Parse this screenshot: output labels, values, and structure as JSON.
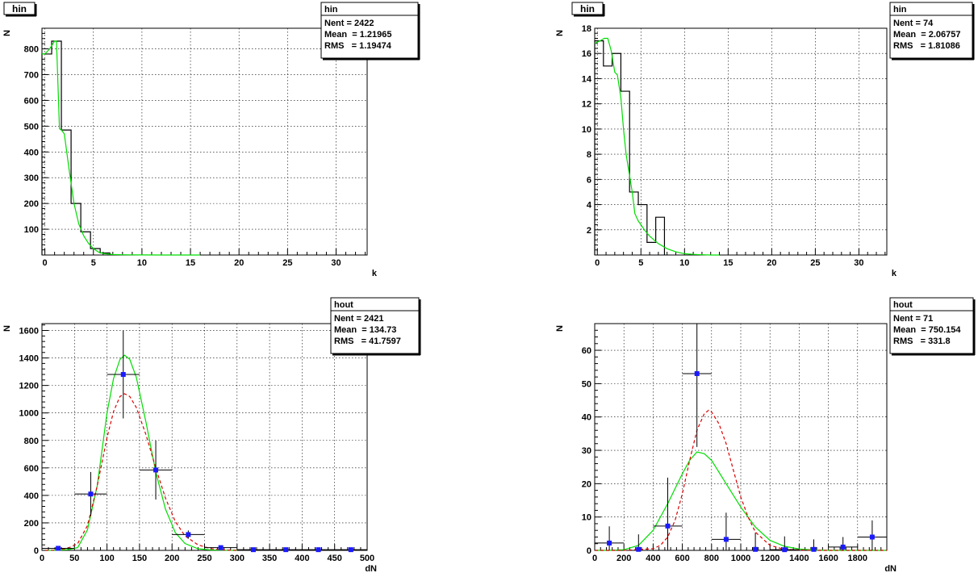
{
  "chart_data": [
    {
      "type": "histogram",
      "title": "hin",
      "xlabel": "k",
      "ylabel": "N",
      "xlim": [
        -0.3,
        33.2
      ],
      "ylim": [
        0,
        880
      ],
      "xticks": [
        0,
        5,
        10,
        15,
        20,
        25,
        30
      ],
      "yticks": [
        100,
        200,
        300,
        400,
        500,
        600,
        700,
        800
      ],
      "stats": {
        "name": "hin",
        "rows": [
          "Nent = 2422",
          "Mean  = 1.21965",
          "RMS   = 1.19474"
        ]
      },
      "hist": {
        "edges": [
          -0.3,
          0.7,
          1.7,
          2.7,
          3.7,
          4.7,
          5.7,
          6.7
        ],
        "values": [
          780,
          830,
          485,
          200,
          90,
          25,
          8
        ],
        "color": "#000000"
      },
      "curves": [
        {
          "name": "fit",
          "color": "#00dd00",
          "dash": "",
          "x": [
            -0.3,
            0,
            0.5,
            1,
            1.2,
            1.5,
            1.7,
            2,
            2.5,
            3,
            3.5,
            4,
            4.5,
            5,
            5.5,
            6,
            7,
            8,
            9,
            10,
            12,
            14,
            16
          ],
          "y": [
            780,
            780,
            800,
            830,
            830,
            490,
            485,
            470,
            330,
            200,
            120,
            75,
            45,
            25,
            12,
            6,
            2,
            1,
            0.5,
            0.2,
            0,
            0,
            0
          ]
        }
      ],
      "points": []
    },
    {
      "type": "histogram",
      "title": "hin",
      "xlabel": "k",
      "ylabel": "N",
      "xlim": [
        -0.3,
        33.2
      ],
      "ylim": [
        0,
        18
      ],
      "xticks": [
        0,
        5,
        10,
        15,
        20,
        25,
        30
      ],
      "yticks": [
        2,
        4,
        6,
        8,
        10,
        12,
        14,
        16,
        18
      ],
      "stats": {
        "name": "hin",
        "rows": [
          "Nent = 74",
          "Mean  = 2.06757",
          "RMS   = 1.81086"
        ]
      },
      "hist": {
        "edges": [
          -0.3,
          0.7,
          1.7,
          2.7,
          3.7,
          4.7,
          5.7,
          6.7,
          7.7
        ],
        "values": [
          17,
          15,
          16,
          13,
          5,
          4,
          1,
          3
        ],
        "color": "#000000"
      },
      "curves": [
        {
          "name": "fit",
          "color": "#00dd00",
          "dash": "",
          "x": [
            -0.3,
            0.3,
            0.8,
            1.2,
            1.6,
            2,
            2.3,
            2.7,
            3,
            3.3,
            3.7,
            4,
            4.3,
            4.7,
            5,
            5.5,
            6,
            6.5,
            7,
            8,
            9,
            10,
            11,
            12,
            13,
            14
          ],
          "y": [
            16.8,
            17,
            17.2,
            17.2,
            16.2,
            14.5,
            14.3,
            12.5,
            10,
            8,
            6.3,
            5,
            3.3,
            2.7,
            2.4,
            1.9,
            1.5,
            1.2,
            0.9,
            0.5,
            0.25,
            0.1,
            0.05,
            0.02,
            0,
            0
          ]
        }
      ],
      "points": []
    },
    {
      "type": "scatter",
      "title": "",
      "xlabel": "dN",
      "ylabel": "N",
      "xlim": [
        0,
        500
      ],
      "ylim": [
        0,
        1650
      ],
      "xticks": [
        0,
        50,
        100,
        150,
        200,
        250,
        300,
        350,
        400,
        450,
        500
      ],
      "yticks": [
        0,
        200,
        400,
        600,
        800,
        1000,
        1200,
        1400,
        1600
      ],
      "stats": {
        "name": "hout",
        "rows": [
          "Nent = 2421",
          "Mean  = 134.73",
          "RMS   = 41.7597"
        ]
      },
      "hist": null,
      "curves": [
        {
          "name": "green",
          "color": "#00dd00",
          "dash": "",
          "x": [
            5,
            20,
            40,
            55,
            70,
            85,
            100,
            110,
            120,
            127,
            135,
            145,
            160,
            175,
            190,
            205,
            220,
            240,
            260,
            280,
            300
          ],
          "y": [
            0,
            1,
            5,
            20,
            150,
            470,
            1000,
            1250,
            1390,
            1420,
            1390,
            1260,
            930,
            570,
            300,
            130,
            50,
            12,
            3,
            1,
            0
          ]
        },
        {
          "name": "red",
          "color": "#dd0000",
          "dash": "4,3",
          "x": [
            5,
            20,
            40,
            55,
            70,
            85,
            100,
            110,
            120,
            127,
            135,
            145,
            160,
            175,
            190,
            205,
            220,
            240,
            260,
            280,
            300
          ],
          "y": [
            0,
            2,
            15,
            50,
            180,
            470,
            820,
            1010,
            1120,
            1140,
            1120,
            1040,
            840,
            600,
            380,
            210,
            105,
            40,
            12,
            3,
            0
          ]
        }
      ],
      "points": [
        {
          "x": 25,
          "y": 15,
          "xerr": 25,
          "yerr": 10
        },
        {
          "x": 75,
          "y": 410,
          "xerr": 25,
          "yerr": 160
        },
        {
          "x": 125,
          "y": 1280,
          "xerr": 25,
          "yerr": 320
        },
        {
          "x": 175,
          "y": 585,
          "xerr": 25,
          "yerr": 215
        },
        {
          "x": 225,
          "y": 115,
          "xerr": 25,
          "yerr": 30
        },
        {
          "x": 275,
          "y": 20,
          "xerr": 25,
          "yerr": 5
        },
        {
          "x": 325,
          "y": 5,
          "xerr": 25,
          "yerr": 0
        },
        {
          "x": 375,
          "y": 5,
          "xerr": 25,
          "yerr": 0
        },
        {
          "x": 425,
          "y": 5,
          "xerr": 25,
          "yerr": 0
        },
        {
          "x": 475,
          "y": 5,
          "xerr": 25,
          "yerr": 0
        }
      ]
    },
    {
      "type": "scatter",
      "title": "",
      "xlabel": "dN",
      "ylabel": "N",
      "xlim": [
        0,
        2000
      ],
      "ylim": [
        0,
        68
      ],
      "xticks": [
        0,
        200,
        400,
        600,
        800,
        1000,
        1200,
        1400,
        1600,
        1800
      ],
      "yticks": [
        0,
        10,
        20,
        30,
        40,
        50,
        60
      ],
      "stats": {
        "name": "hout",
        "rows": [
          "Nent = 71",
          "Mean  = 750.154",
          "RMS   = 331.8"
        ]
      },
      "hist": null,
      "curves": [
        {
          "name": "green",
          "color": "#00dd00",
          "dash": "",
          "x": [
            0,
            100,
            200,
            300,
            400,
            500,
            600,
            650,
            700,
            750,
            800,
            900,
            1000,
            1100,
            1200,
            1300,
            1400,
            1500,
            1600,
            1700,
            1800,
            1900,
            2000
          ],
          "y": [
            0,
            0,
            0.2,
            1.5,
            6,
            14,
            23,
            27,
            29.5,
            29,
            27,
            20,
            13,
            7,
            3,
            1.2,
            0.4,
            0.1,
            0,
            0,
            0,
            0,
            0
          ]
        },
        {
          "name": "red",
          "color": "#dd0000",
          "dash": "4,3",
          "x": [
            0,
            200,
            400,
            450,
            500,
            550,
            600,
            650,
            700,
            750,
            780,
            800,
            850,
            900,
            950,
            1000,
            1050,
            1100,
            1200,
            1300,
            1500,
            2000
          ],
          "y": [
            0,
            0,
            0.5,
            1.5,
            4,
            9,
            17,
            27,
            36,
            41,
            42,
            41.5,
            38,
            32,
            24,
            16,
            10,
            5.5,
            1.5,
            0.3,
            0,
            0
          ]
        }
      ],
      "points": [
        {
          "x": 100,
          "y": 2.2,
          "xerr": 100,
          "yerr": 5
        },
        {
          "x": 300,
          "y": 0.3,
          "xerr": 0,
          "yerr": 4.5
        },
        {
          "x": 500,
          "y": 7.3,
          "xerr": 100,
          "yerr": 14.5
        },
        {
          "x": 700,
          "y": 53,
          "xerr": 100,
          "yerr": 22
        },
        {
          "x": 900,
          "y": 3.3,
          "xerr": 100,
          "yerr": 8
        },
        {
          "x": 1100,
          "y": 0.3,
          "xerr": 0,
          "yerr": 5
        },
        {
          "x": 1300,
          "y": 0.2,
          "xerr": 100,
          "yerr": 4
        },
        {
          "x": 1500,
          "y": 0.3,
          "xerr": 0,
          "yerr": 3
        },
        {
          "x": 1700,
          "y": 1,
          "xerr": 100,
          "yerr": 3
        },
        {
          "x": 1900,
          "y": 4,
          "xerr": 100,
          "yerr": 5
        }
      ]
    }
  ]
}
